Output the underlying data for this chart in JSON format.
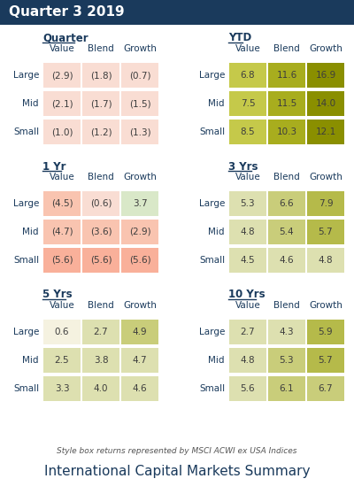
{
  "title_bar": "Quarter 3 2019",
  "title_bar_bg": "#1a3a5c",
  "title_bar_color": "#ffffff",
  "footer_note": "Style box returns represented by MSCI ACWI ex USA Indices",
  "footer_title": "International Capital Markets Summary",
  "sections": [
    {
      "label": "Quarter",
      "col": 0,
      "row": 0,
      "rows": [
        "Large",
        "Mid",
        "Small"
      ],
      "cols": [
        "Value",
        "Blend",
        "Growth"
      ],
      "values": [
        [
          "(2.9)",
          "(1.8)",
          "(0.7)"
        ],
        [
          "(2.1)",
          "(1.7)",
          "(1.5)"
        ],
        [
          "(1.0)",
          "(1.2)",
          "(1.3)"
        ]
      ],
      "colors": [
        [
          "#f9ddd3",
          "#f9ddd3",
          "#f9ddd3"
        ],
        [
          "#f9ddd3",
          "#f9ddd3",
          "#f9ddd3"
        ],
        [
          "#f9ddd3",
          "#f9ddd3",
          "#f9ddd3"
        ]
      ]
    },
    {
      "label": "YTD",
      "col": 1,
      "row": 0,
      "rows": [
        "Large",
        "Mid",
        "Small"
      ],
      "cols": [
        "Value",
        "Blend",
        "Growth"
      ],
      "values": [
        [
          "6.8",
          "11.6",
          "16.9"
        ],
        [
          "7.5",
          "11.5",
          "14.0"
        ],
        [
          "8.5",
          "10.3",
          "12.1"
        ]
      ],
      "colors": [
        [
          "#c5c94a",
          "#a8ad1e",
          "#8a8f00"
        ],
        [
          "#c5c94a",
          "#a8ad1e",
          "#8a8f00"
        ],
        [
          "#c5c94a",
          "#a8ad1e",
          "#8a8f00"
        ]
      ]
    },
    {
      "label": "1 Yr",
      "col": 0,
      "row": 1,
      "rows": [
        "Large",
        "Mid",
        "Small"
      ],
      "cols": [
        "Value",
        "Blend",
        "Growth"
      ],
      "values": [
        [
          "(4.5)",
          "(0.6)",
          "3.7"
        ],
        [
          "(4.7)",
          "(3.6)",
          "(2.9)"
        ],
        [
          "(5.6)",
          "(5.6)",
          "(5.6)"
        ]
      ],
      "colors": [
        [
          "#f9c4b0",
          "#f9ddd3",
          "#d9e8c8"
        ],
        [
          "#f9c4b0",
          "#f9c4b0",
          "#f9c4b0"
        ],
        [
          "#f9b09a",
          "#f9b09a",
          "#f9b09a"
        ]
      ]
    },
    {
      "label": "3 Yrs",
      "col": 1,
      "row": 1,
      "rows": [
        "Large",
        "Mid",
        "Small"
      ],
      "cols": [
        "Value",
        "Blend",
        "Growth"
      ],
      "values": [
        [
          "5.3",
          "6.6",
          "7.9"
        ],
        [
          "4.8",
          "5.4",
          "5.7"
        ],
        [
          "4.5",
          "4.6",
          "4.8"
        ]
      ],
      "colors": [
        [
          "#dde0b0",
          "#c9cd7a",
          "#b5ba4a"
        ],
        [
          "#dde0b0",
          "#c9cd7a",
          "#b5ba4a"
        ],
        [
          "#dde0b0",
          "#dde0b0",
          "#dde0b0"
        ]
      ]
    },
    {
      "label": "5 Yrs",
      "col": 0,
      "row": 2,
      "rows": [
        "Large",
        "Mid",
        "Small"
      ],
      "cols": [
        "Value",
        "Blend",
        "Growth"
      ],
      "values": [
        [
          "0.6",
          "2.7",
          "4.9"
        ],
        [
          "2.5",
          "3.8",
          "4.7"
        ],
        [
          "3.3",
          "4.0",
          "4.6"
        ]
      ],
      "colors": [
        [
          "#f5f2e0",
          "#dde0b0",
          "#c9cd7a"
        ],
        [
          "#dde0b0",
          "#dde0b0",
          "#dde0b0"
        ],
        [
          "#dde0b0",
          "#dde0b0",
          "#dde0b0"
        ]
      ]
    },
    {
      "label": "10 Yrs",
      "col": 1,
      "row": 2,
      "rows": [
        "Large",
        "Mid",
        "Small"
      ],
      "cols": [
        "Value",
        "Blend",
        "Growth"
      ],
      "values": [
        [
          "2.7",
          "4.3",
          "5.9"
        ],
        [
          "4.8",
          "5.3",
          "5.7"
        ],
        [
          "5.6",
          "6.1",
          "6.7"
        ]
      ],
      "colors": [
        [
          "#dde0b0",
          "#dde0b0",
          "#b5ba4a"
        ],
        [
          "#dde0b0",
          "#c9cd7a",
          "#b5ba4a"
        ],
        [
          "#dde0b0",
          "#c9cd7a",
          "#c9cd7a"
        ]
      ]
    }
  ],
  "bg_color": "#ffffff",
  "text_color": "#1a3a5c",
  "cell_text_color": "#3d3d3d",
  "header_color": "#1a3a5c"
}
